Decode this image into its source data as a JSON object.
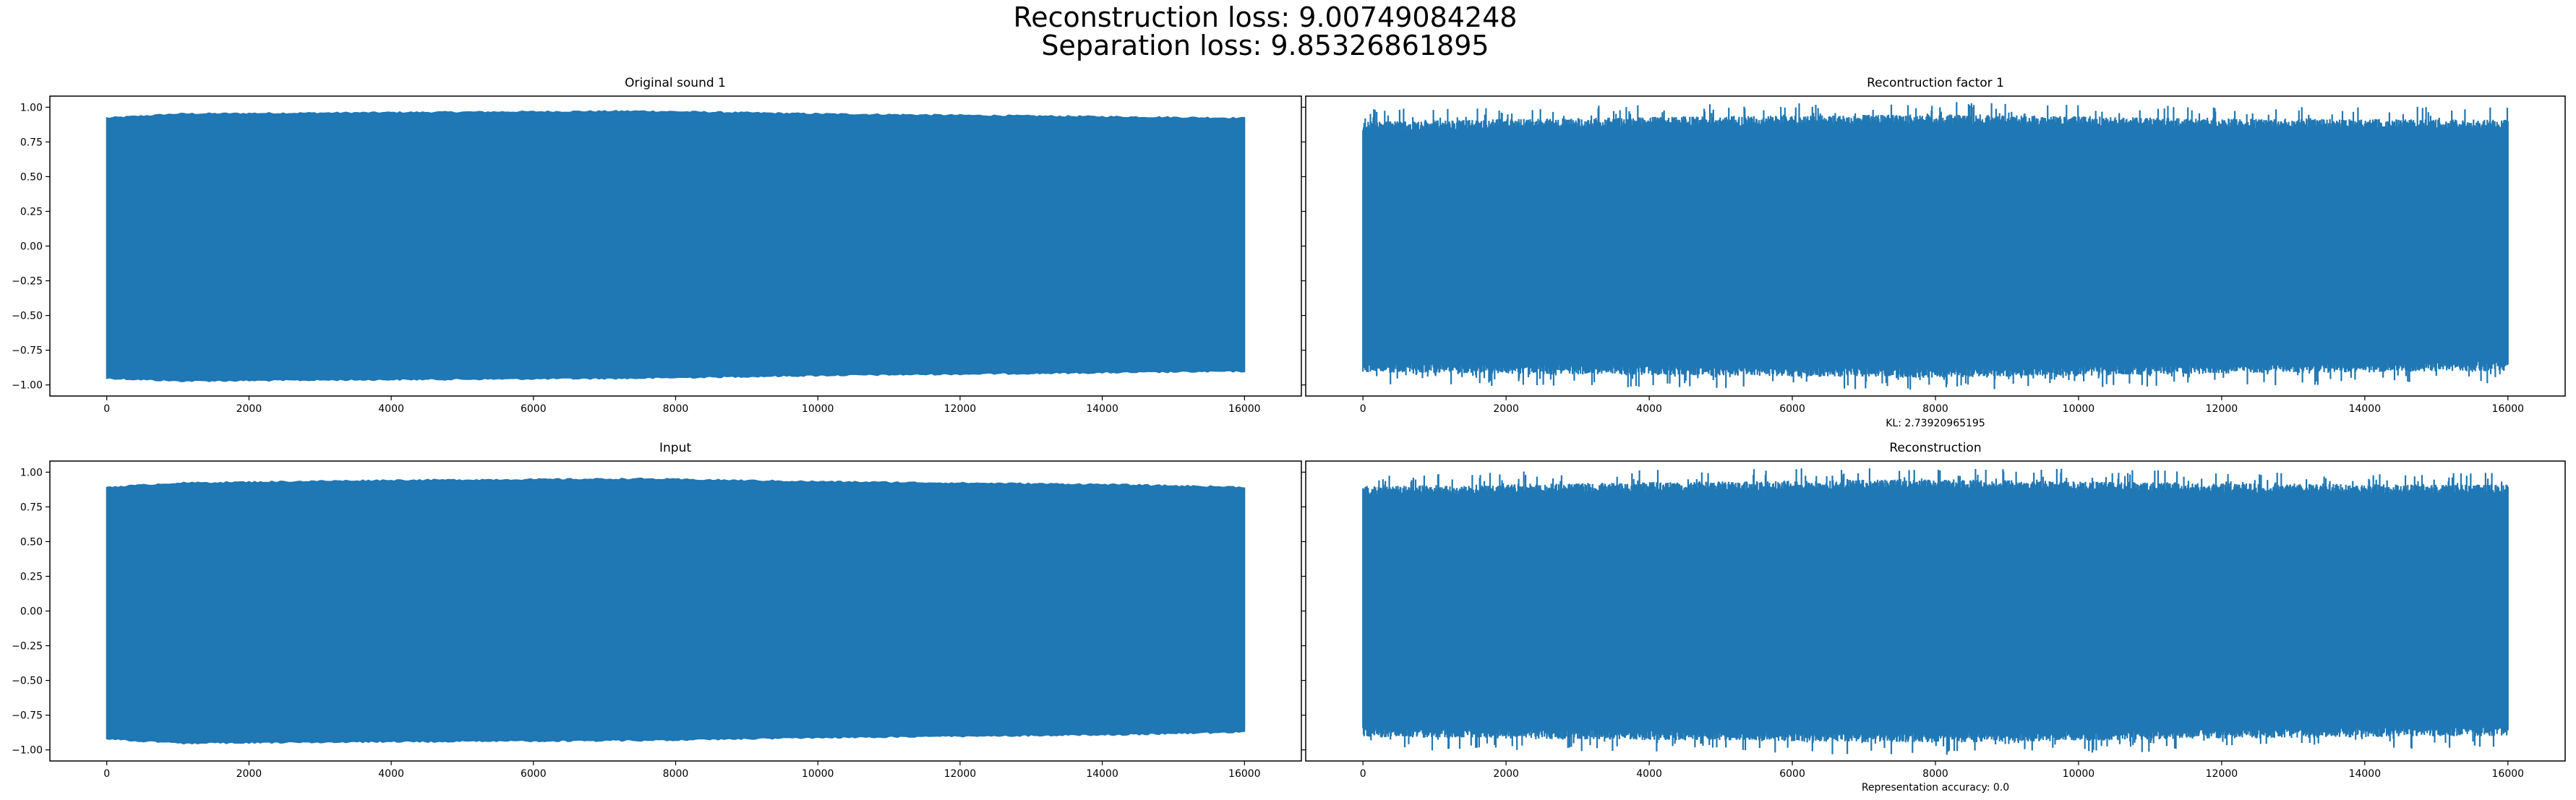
{
  "figure": {
    "suptitle_lines": [
      "Reconstruction loss: 9.00749084248",
      "Separation loss: 9.85326861895"
    ]
  },
  "colors": {
    "series": "#1f77b4",
    "axes": "#000000",
    "background": "#ffffff"
  },
  "chart_data": [
    {
      "type": "line",
      "title": "Original sound 1",
      "xlabel": "",
      "ylabel": "",
      "xlim": [
        -800,
        16800
      ],
      "ylim": [
        -1.08,
        1.08
      ],
      "x_range": [
        0,
        16000
      ],
      "envelope": {
        "x": [
          0,
          1000,
          4000,
          7500,
          10000,
          14000,
          16000
        ],
        "upper": [
          0.92,
          0.95,
          0.96,
          0.97,
          0.95,
          0.93,
          0.92
        ],
        "lower": [
          -0.95,
          -0.97,
          -0.96,
          -0.95,
          -0.93,
          -0.91,
          -0.9
        ]
      },
      "noisy": false,
      "xticks": [
        0,
        2000,
        4000,
        6000,
        8000,
        10000,
        12000,
        14000,
        16000
      ],
      "yticks": [
        -1.0,
        -0.75,
        -0.5,
        -0.25,
        0.0,
        0.25,
        0.5,
        0.75,
        1.0
      ],
      "ytick_labels": [
        "−1.00",
        "−0.75",
        "−0.50",
        "−0.25",
        "0.00",
        "0.25",
        "0.50",
        "0.75",
        "1.00"
      ]
    },
    {
      "type": "line",
      "title": "Recontruction factor 1",
      "xlabel": "KL: 2.73920965195",
      "ylabel": "",
      "xlim": [
        -800,
        16800
      ],
      "ylim": [
        -1.08,
        1.08
      ],
      "x_range": [
        0,
        16000
      ],
      "envelope": {
        "x": [
          0,
          4000,
          8000,
          12000,
          16000
        ],
        "upper": [
          0.85,
          0.88,
          0.9,
          0.87,
          0.86
        ],
        "lower": [
          -0.86,
          -0.88,
          -0.9,
          -0.87,
          -0.85
        ]
      },
      "noisy": true,
      "xticks": [
        0,
        2000,
        4000,
        6000,
        8000,
        10000,
        12000,
        14000,
        16000
      ],
      "yticks": [
        -1.0,
        -0.75,
        -0.5,
        -0.25,
        0.0,
        0.25,
        0.5,
        0.75,
        1.0
      ]
    },
    {
      "type": "line",
      "title": "Input",
      "xlabel": "",
      "ylabel": "",
      "xlim": [
        -800,
        16800
      ],
      "ylim": [
        -1.08,
        1.08
      ],
      "x_range": [
        0,
        16000
      ],
      "envelope": {
        "x": [
          0,
          1000,
          4000,
          7500,
          10000,
          14000,
          16000
        ],
        "upper": [
          0.89,
          0.92,
          0.94,
          0.95,
          0.93,
          0.91,
          0.89
        ],
        "lower": [
          -0.92,
          -0.95,
          -0.94,
          -0.93,
          -0.91,
          -0.89,
          -0.87
        ]
      },
      "noisy": false,
      "xticks": [
        0,
        2000,
        4000,
        6000,
        8000,
        10000,
        12000,
        14000,
        16000
      ],
      "yticks": [
        -1.0,
        -0.75,
        -0.5,
        -0.25,
        0.0,
        0.25,
        0.5,
        0.75,
        1.0
      ],
      "ytick_labels": [
        "−1.00",
        "−0.75",
        "−0.50",
        "−0.25",
        "0.00",
        "0.25",
        "0.50",
        "0.75",
        "1.00"
      ]
    },
    {
      "type": "line",
      "title": "Reconstruction",
      "xlabel": "Representation accuracy: 0.0",
      "ylabel": "",
      "xlim": [
        -800,
        16800
      ],
      "ylim": [
        -1.08,
        1.08
      ],
      "x_range": [
        0,
        16000
      ],
      "envelope": {
        "x": [
          0,
          4000,
          8000,
          12000,
          16000
        ],
        "upper": [
          0.85,
          0.88,
          0.9,
          0.87,
          0.86
        ],
        "lower": [
          -0.86,
          -0.88,
          -0.9,
          -0.87,
          -0.85
        ]
      },
      "noisy": true,
      "xticks": [
        0,
        2000,
        4000,
        6000,
        8000,
        10000,
        12000,
        14000,
        16000
      ],
      "yticks": [
        -1.0,
        -0.75,
        -0.5,
        -0.25,
        0.0,
        0.25,
        0.5,
        0.75,
        1.0
      ]
    }
  ]
}
